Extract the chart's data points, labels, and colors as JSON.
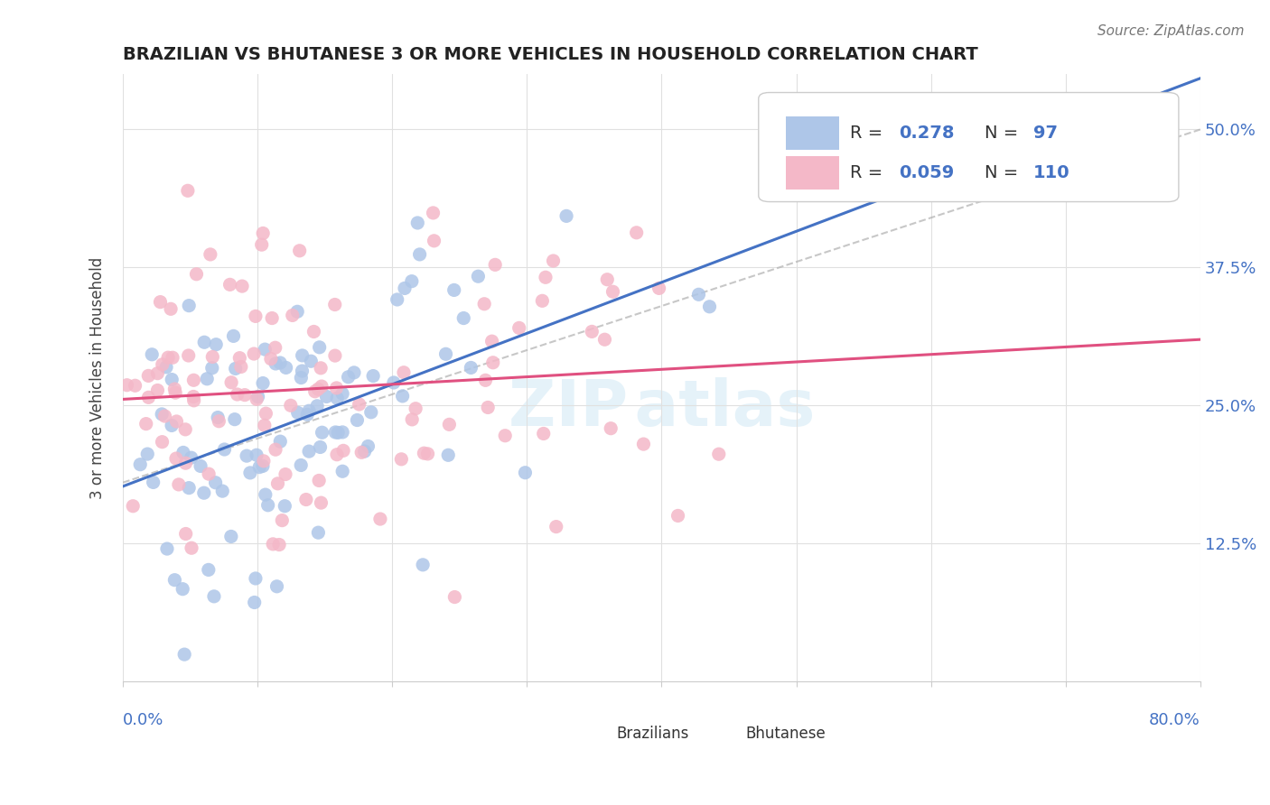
{
  "title": "BRAZILIAN VS BHUTANESE 3 OR MORE VEHICLES IN HOUSEHOLD CORRELATION CHART",
  "source": "Source: ZipAtlas.com",
  "ylabel": "3 or more Vehicles in Household",
  "ytick_labels": [
    "12.5%",
    "25.0%",
    "37.5%",
    "50.0%"
  ],
  "ytick_values": [
    0.125,
    0.25,
    0.375,
    0.5
  ],
  "xmin": 0.0,
  "xmax": 0.8,
  "ymin": 0.0,
  "ymax": 0.55,
  "r_brazilian": 0.278,
  "n_brazilian": 97,
  "r_bhutanese": 0.059,
  "n_bhutanese": 110,
  "color_brazilian": "#aec6e8",
  "color_bhutanese": "#f4b8c8",
  "color_trend_brazilian": "#4472c4",
  "color_trend_bhutanese": "#e05080",
  "color_dashed": "#b0b0b0",
  "legend_labels": [
    "Brazilians",
    "Bhutanese"
  ],
  "background_color": "#ffffff"
}
